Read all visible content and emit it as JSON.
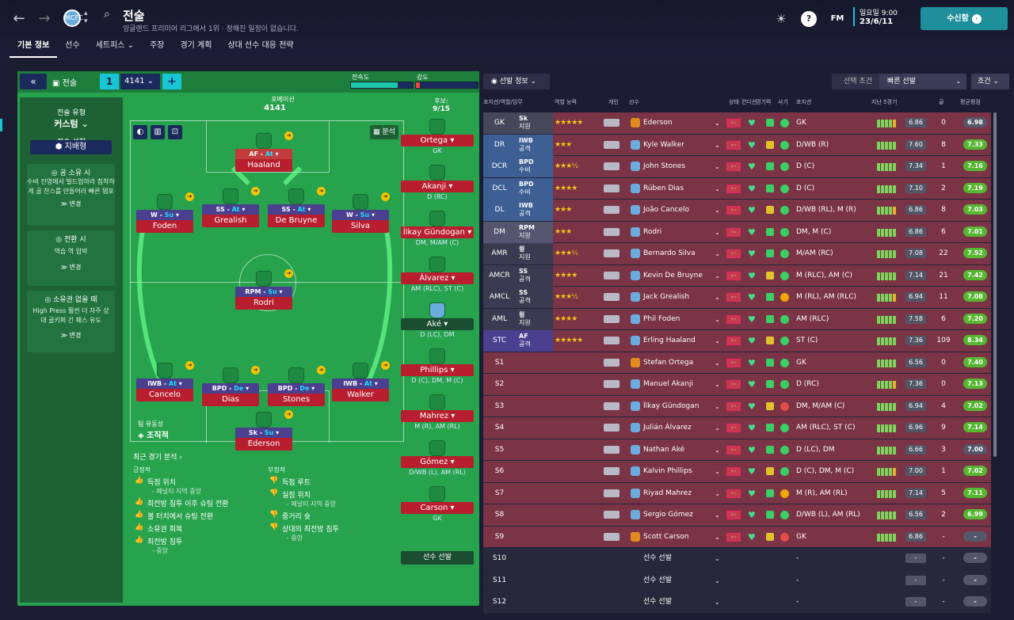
{
  "header": {
    "title": "전술",
    "subtitle": "잉글랜드 프리미어 리그에서 1위 · 정해진 일정이 없습니다.",
    "club_badge": "MCFC",
    "tabs": [
      "기본 정보",
      "선수",
      "세트피스 ⌄",
      "주장",
      "경기 계획",
      "상대 선수 대응 전략"
    ],
    "fm_label": "FM",
    "day": "일요일 9:00",
    "date": "23/6/11",
    "continue_label": "수신함",
    "accent": "#18c5d6"
  },
  "tactic": {
    "label": "전술",
    "slot": "1",
    "formation_select": "4141 ⌄",
    "mentality_label": "전속도",
    "intensity_label": "강도",
    "mentality_level": 0.75,
    "intensity_level": 0.05,
    "style_title": "전술 유형",
    "style_value": "커스텀 ⌄",
    "mentality_title": "전술 성향",
    "mentality_value": "지배형",
    "in_possession_title": "공 소유 시",
    "in_possession_text": "수비 진영에서 빌드업하라 침착하게 골 찬스를 만들어라 빠른 템포",
    "in_transition_title": "전환 시",
    "in_transition_text": "역습 역 압박",
    "out_possession_title": "소유권 없을 때",
    "out_possession_text": "High Press 훨씬 더 자주 상대 골키퍼 긴 패스 유도",
    "change_label": "≫ 변경",
    "formation_title": "포메이션",
    "formation": "4141",
    "subs_label": "후보:",
    "subs_count": "9/15",
    "analysis_btn": "분석",
    "fluidity_label": "팀 유동성",
    "fluidity_value": "조직적"
  },
  "pitch_players": [
    {
      "role": "AF",
      "duty": "At",
      "name": "Haaland"
    },
    {
      "role": "W",
      "duty": "Su",
      "name": "Foden"
    },
    {
      "role": "SS",
      "duty": "At",
      "name": "Grealish"
    },
    {
      "role": "SS",
      "duty": "At",
      "name": "De Bruyne"
    },
    {
      "role": "W",
      "duty": "Su",
      "name": "Silva"
    },
    {
      "role": "RPM",
      "duty": "Su",
      "name": "Rodri"
    },
    {
      "role": "IWB",
      "duty": "At",
      "name": "Cancelo"
    },
    {
      "role": "BPD",
      "duty": "De",
      "name": "Dias"
    },
    {
      "role": "BPD",
      "duty": "De",
      "name": "Stones"
    },
    {
      "role": "IWB",
      "duty": "At",
      "name": "Walker"
    },
    {
      "role": "Sk",
      "duty": "Su",
      "name": "Ederson"
    }
  ],
  "subs": [
    {
      "name": "Ortega",
      "pos": "GK"
    },
    {
      "name": "Akanji",
      "pos": "D (RC)"
    },
    {
      "name": "İlkay Gündogan",
      "pos": "DM, M/AM (C)"
    },
    {
      "name": "Álvarez",
      "pos": "AM (RLC), ST (C)"
    },
    {
      "name": "Aké",
      "pos": "D (LC), DM"
    },
    {
      "name": "Phillips",
      "pos": "D (C), DM, M (C)"
    },
    {
      "name": "Mahrez",
      "pos": "M (R), AM (RL)"
    },
    {
      "name": "Gómez",
      "pos": "D/WB (L), AM (RL)"
    },
    {
      "name": "Carson",
      "pos": "GK"
    }
  ],
  "sub_select": "선수 선발",
  "analysis": {
    "title": "최근 경기 분석 ›",
    "positive_title": "긍정적",
    "negative_title": "부정적",
    "positive": [
      {
        "text": "득점 위치",
        "sub": "- 페널티 지역 중앙"
      },
      {
        "text": "최전방 침투 이후 슈팅 전환",
        "sub": ""
      },
      {
        "text": "볼 터치에서 슈팅 전환",
        "sub": ""
      },
      {
        "text": "소유권 회복",
        "sub": ""
      },
      {
        "text": "최전방 침투",
        "sub": "- 중앙"
      }
    ],
    "negative": [
      {
        "text": "득점 루트",
        "sub": ""
      },
      {
        "text": "실점 위치",
        "sub": "- 페널티 지역 중앙"
      },
      {
        "text": "중거리 슛",
        "sub": ""
      },
      {
        "text": "상대의 최전방 침투",
        "sub": "- 중앙"
      }
    ]
  },
  "right": {
    "selection_info": "선발 정보 ⌄",
    "selection_cond": "선택 조건",
    "quick_pick": "빠른 선발",
    "conditions": "조건 ⌄",
    "columns": [
      "포지션/역할/임무",
      "역할 능력",
      "개인",
      "선수",
      "상태",
      "컨디션",
      "경기력",
      "사기",
      "포지션",
      "지난 5경기",
      "골",
      "평균평점"
    ],
    "rows": [
      {
        "pos": "GK",
        "role": "Sk",
        "duty": "지원",
        "stars": "★★★★★",
        "name": "Ederson",
        "gk": true,
        "ppos": "GK",
        "avr": "6.86",
        "goals": "0",
        "rating": "6.98"
      },
      {
        "pos": "DR",
        "role": "IWB",
        "duty": "공격",
        "stars": "★★★",
        "name": "Kyle Walker",
        "ppos": "D/WB (R)",
        "avr": "7.60",
        "goals": "8",
        "rating": "7.33"
      },
      {
        "pos": "DCR",
        "role": "BPD",
        "duty": "수비",
        "stars": "★★★½",
        "name": "John Stones",
        "ppos": "D (C)",
        "avr": "7.34",
        "goals": "1",
        "rating": "7.16"
      },
      {
        "pos": "DCL",
        "role": "BPD",
        "duty": "수비",
        "stars": "★★★★",
        "name": "Rúben Dias",
        "ppos": "D (C)",
        "avr": "7.10",
        "goals": "2",
        "rating": "7.19"
      },
      {
        "pos": "DL",
        "role": "IWB",
        "duty": "공격",
        "stars": "★★★",
        "name": "João Cancelo",
        "ppos": "D/WB (RL), M (R)",
        "avr": "6.86",
        "goals": "8",
        "rating": "7.03"
      },
      {
        "pos": "DM",
        "role": "RPM",
        "duty": "지원",
        "stars": "★★★",
        "name": "Rodri",
        "ppos": "DM, M (C)",
        "avr": "6.86",
        "goals": "6",
        "rating": "7.01"
      },
      {
        "pos": "AMR",
        "role": "윙",
        "duty": "지원",
        "stars": "★★★½",
        "name": "Bernardo Silva",
        "ppos": "M/AM (RC)",
        "avr": "7.08",
        "goals": "22",
        "rating": "7.52"
      },
      {
        "pos": "AMCR",
        "role": "SS",
        "duty": "공격",
        "stars": "★★★★",
        "name": "Kevin De Bruyne",
        "ppos": "M (RLC), AM (C)",
        "avr": "7.14",
        "goals": "21",
        "rating": "7.42"
      },
      {
        "pos": "AMCL",
        "role": "SS",
        "duty": "공격",
        "stars": "★★★½",
        "name": "Jack Grealish",
        "ppos": "M (RL), AM (RLC)",
        "avr": "6.94",
        "goals": "11",
        "rating": "7.08"
      },
      {
        "pos": "AML",
        "role": "윙",
        "duty": "지원",
        "stars": "★★★★",
        "name": "Phil Foden",
        "ppos": "AM (RLC)",
        "avr": "7.58",
        "goals": "6",
        "rating": "7.20"
      },
      {
        "pos": "STC",
        "role": "AF",
        "duty": "공격",
        "stars": "★★★★★",
        "name": "Erling Haaland",
        "ppos": "ST (C)",
        "avr": "7.36",
        "goals": "109",
        "rating": "8.34"
      },
      {
        "pos": "S1",
        "name": "Stefan Ortega",
        "gk": true,
        "ppos": "GK",
        "avr": "6.56",
        "goals": "0",
        "rating": "7.40"
      },
      {
        "pos": "S2",
        "name": "Manuel Akanji",
        "ppos": "D (RC)",
        "avr": "7.36",
        "goals": "0",
        "rating": "7.13"
      },
      {
        "pos": "S3",
        "name": "İlkay Gündogan",
        "ppos": "DM, M/AM (C)",
        "avr": "6.94",
        "goals": "4",
        "rating": "7.02"
      },
      {
        "pos": "S4",
        "name": "Julián Álvarez",
        "ppos": "AM (RLC), ST (C)",
        "avr": "6.96",
        "goals": "9",
        "rating": "7.14"
      },
      {
        "pos": "S5",
        "name": "Nathan Aké",
        "ppos": "D (LC), DM",
        "avr": "6.66",
        "goals": "3",
        "rating": "7.00"
      },
      {
        "pos": "S6",
        "name": "Kalvin Phillips",
        "ppos": "D (C), DM, M (C)",
        "avr": "7.00",
        "goals": "1",
        "rating": "7.02"
      },
      {
        "pos": "S7",
        "name": "Riyad Mahrez",
        "ppos": "M (R), AM (RL)",
        "avr": "7.14",
        "goals": "5",
        "rating": "7.11"
      },
      {
        "pos": "S8",
        "name": "Sergio Gómez",
        "ppos": "D/WB (L), AM (RL)",
        "avr": "6.56",
        "goals": "2",
        "rating": "6.99"
      },
      {
        "pos": "S9",
        "name": "Scott Carson",
        "gk": true,
        "ppos": "GK",
        "avr": "6.86",
        "goals": "-",
        "rating": "-"
      },
      {
        "pos": "S10",
        "name": "선수 선발",
        "empty": true,
        "ppos": "-",
        "avr": "-",
        "goals": "-",
        "rating": "-"
      },
      {
        "pos": "S11",
        "name": "선수 선발",
        "empty": true,
        "ppos": "-",
        "avr": "-",
        "goals": "-",
        "rating": "-"
      },
      {
        "pos": "S12",
        "name": "선수 선발",
        "empty": true,
        "ppos": "-",
        "avr": "-",
        "goals": "-",
        "rating": "-"
      }
    ]
  }
}
